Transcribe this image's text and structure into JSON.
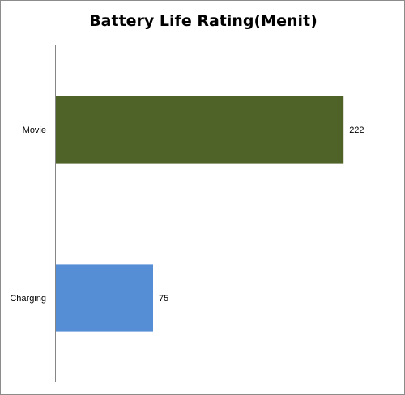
{
  "chart_data": {
    "type": "bar",
    "orientation": "horizontal",
    "title": "Battery Life Rating(Menit)",
    "categories": [
      "Movie",
      "Charging"
    ],
    "values": [
      222,
      75
    ],
    "bar_colors": [
      "#4f6228",
      "#558ed5"
    ],
    "data_labels": [
      "222",
      "75"
    ],
    "xlim": [
      0,
      250
    ],
    "grid": false,
    "legend": "none"
  }
}
